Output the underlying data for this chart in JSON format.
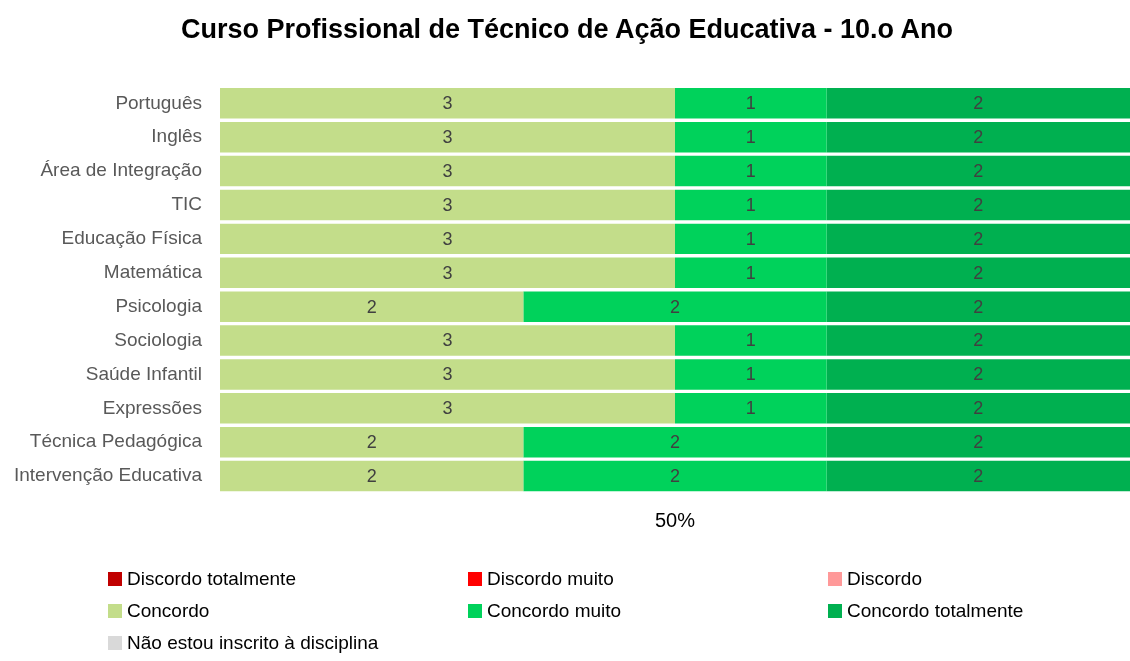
{
  "chart_data": {
    "type": "bar",
    "orientation": "horizontal",
    "stacked": true,
    "title": "Curso Profissional de Técnico de Ação Educativa - 10.o Ano",
    "categories": [
      "Português",
      "Inglês",
      "Área de Integração",
      "TIC",
      "Educação Física",
      "Matemática",
      "Psicologia",
      "Sociologia",
      "Saúde Infantil",
      "Expressões",
      "Técnica Pedagógica",
      "Intervenção Educativa"
    ],
    "series": [
      {
        "name": "Discordo totalmente",
        "color": "#c00000",
        "values": [
          null,
          null,
          null,
          null,
          null,
          null,
          null,
          null,
          null,
          null,
          null,
          null
        ]
      },
      {
        "name": "Discordo muito",
        "color": "#ff0000",
        "values": [
          null,
          null,
          null,
          null,
          null,
          null,
          null,
          null,
          null,
          null,
          null,
          null
        ]
      },
      {
        "name": "Discordo",
        "color": "#ff9999",
        "values": [
          null,
          null,
          null,
          null,
          null,
          null,
          null,
          null,
          null,
          null,
          null,
          null
        ]
      },
      {
        "name": "Concordo",
        "color": "#c3dd8a",
        "values": [
          3,
          3,
          3,
          3,
          3,
          3,
          2,
          3,
          3,
          3,
          2,
          2
        ]
      },
      {
        "name": "Concordo muito",
        "color": "#00d25b",
        "values": [
          1,
          1,
          1,
          1,
          1,
          1,
          2,
          1,
          1,
          1,
          2,
          2
        ]
      },
      {
        "name": "Concordo totalmente",
        "color": "#00b050",
        "values": [
          2,
          2,
          2,
          2,
          2,
          2,
          2,
          2,
          2,
          2,
          2,
          2
        ]
      },
      {
        "name": "Não estou inscrito à disciplina",
        "color": "#d9d9d9",
        "values": [
          null,
          null,
          null,
          null,
          null,
          null,
          null,
          null,
          null,
          null,
          null,
          null
        ]
      }
    ],
    "xlim": [
      0,
      6
    ],
    "annotations": [
      "50%"
    ],
    "legend": "bottom",
    "data_labels": true
  }
}
